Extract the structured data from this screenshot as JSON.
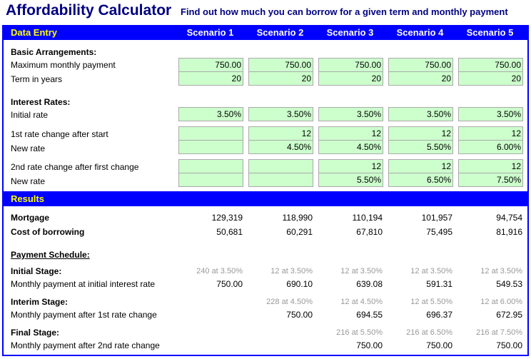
{
  "title": "Affordability Calculator",
  "subtitle": "Find out how much you can borrow for a given term and monthly payment",
  "data_entry_label": "Data Entry",
  "results_label": "Results",
  "scenarios": [
    "Scenario 1",
    "Scenario 2",
    "Scenario 3",
    "Scenario 4",
    "Scenario 5"
  ],
  "labels": {
    "basic": "Basic Arrangements:",
    "max_payment": "Maximum monthly payment",
    "term": "Term in years",
    "interest": "Interest Rates:",
    "initial_rate": "Initial rate",
    "first_change": "1st rate change after start",
    "new_rate1": "New rate",
    "second_change": "2nd rate change after first change",
    "new_rate2": "New rate",
    "mortgage": "Mortgage",
    "cost": "Cost of borrowing",
    "schedule": "Payment Schedule:",
    "initial_stage": "Initial Stage:",
    "initial_payment": "Monthly payment at initial interest rate",
    "interim_stage": "Interim Stage:",
    "interim_payment": "Monthly payment after 1st rate change",
    "final_stage": "Final Stage:",
    "final_payment": "Monthly payment after 2nd rate change"
  },
  "inputs": {
    "max_payment": [
      "750.00",
      "750.00",
      "750.00",
      "750.00",
      "750.00"
    ],
    "term": [
      "20",
      "20",
      "20",
      "20",
      "20"
    ],
    "initial_rate": [
      "3.50%",
      "3.50%",
      "3.50%",
      "3.50%",
      "3.50%"
    ],
    "first_change": [
      "",
      "12",
      "12",
      "12",
      "12"
    ],
    "new_rate1": [
      "",
      "4.50%",
      "4.50%",
      "5.50%",
      "6.00%"
    ],
    "second_change": [
      "",
      "",
      "12",
      "12",
      "12"
    ],
    "new_rate2": [
      "",
      "",
      "5.50%",
      "6.50%",
      "7.50%"
    ]
  },
  "results": {
    "mortgage": [
      "129,319",
      "118,990",
      "110,194",
      "101,957",
      "94,754"
    ],
    "cost": [
      "50,681",
      "60,291",
      "67,810",
      "75,495",
      "81,916"
    ],
    "initial_stage": [
      "240 at 3.50%",
      "12 at 3.50%",
      "12 at 3.50%",
      "12 at 3.50%",
      "12 at 3.50%"
    ],
    "initial_payment": [
      "750.00",
      "690.10",
      "639.08",
      "591.31",
      "549.53"
    ],
    "interim_stage": [
      "",
      "228 at 4.50%",
      "12 at 4.50%",
      "12 at 5.50%",
      "12 at 6.00%"
    ],
    "interim_payment": [
      "",
      "750.00",
      "694.55",
      "696.37",
      "672.95"
    ],
    "final_stage": [
      "",
      "",
      "216 at 5.50%",
      "216 at 6.50%",
      "216 at 7.50%"
    ],
    "final_payment": [
      "",
      "",
      "750.00",
      "750.00",
      "750.00"
    ]
  }
}
